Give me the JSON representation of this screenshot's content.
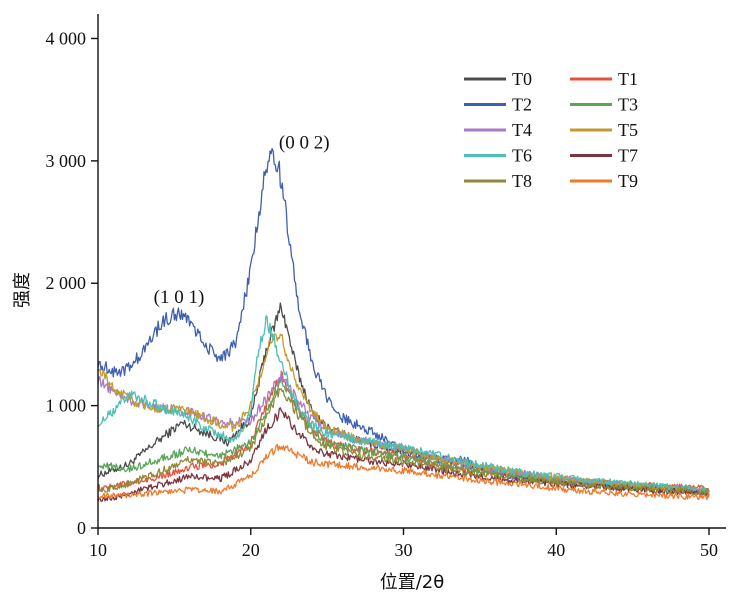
{
  "chart_data": {
    "type": "line",
    "title": "",
    "xlabel": "位置/2θ",
    "ylabel": "强度",
    "xlim": [
      10,
      50
    ],
    "ylim": [
      0,
      4200
    ],
    "x_ticks": [
      10,
      20,
      30,
      40,
      50
    ],
    "x_tick_labels": [
      "10",
      "20",
      "30",
      "40",
      "50"
    ],
    "y_ticks": [
      0,
      1000,
      2000,
      3000,
      4000
    ],
    "y_tick_labels": [
      "0",
      "1 000",
      "2 000",
      "3 000",
      "4 000"
    ],
    "grid": false,
    "legend_position": "top-right",
    "annotations": [
      {
        "text": "(1 0 1)",
        "x": 15.3,
        "y": 1840
      },
      {
        "text": "(0 0 2)",
        "x": 23.5,
        "y": 3100
      }
    ],
    "series": [
      {
        "name": "T0",
        "color": "#4d4d4d",
        "x": [
          10,
          12,
          14,
          15.5,
          17,
          18.5,
          20,
          21,
          22,
          23,
          24,
          25,
          27,
          30,
          34,
          38,
          42,
          46,
          50
        ],
        "y": [
          430,
          520,
          720,
          860,
          780,
          700,
          900,
          1450,
          1820,
          1300,
          950,
          820,
          720,
          620,
          520,
          420,
          360,
          320,
          290
        ]
      },
      {
        "name": "T1",
        "color": "#e8503a",
        "x": [
          10,
          12,
          14,
          16,
          18,
          20,
          21,
          22,
          23,
          24,
          25,
          27,
          30,
          34,
          38,
          42,
          46,
          50
        ],
        "y": [
          330,
          360,
          420,
          500,
          520,
          700,
          1000,
          1250,
          1000,
          800,
          700,
          640,
          580,
          480,
          420,
          380,
          350,
          320
        ]
      },
      {
        "name": "T2",
        "color": "#3f5fb0",
        "x": [
          10,
          11,
          12,
          13,
          14,
          15,
          16,
          17,
          18,
          19,
          20,
          20.5,
          21,
          21.5,
          22,
          22.5,
          23,
          24,
          25,
          26,
          28,
          30,
          32,
          34,
          36,
          38,
          40,
          42,
          45,
          48,
          50
        ],
        "y": [
          1350,
          1280,
          1300,
          1450,
          1650,
          1760,
          1700,
          1500,
          1380,
          1500,
          2100,
          2550,
          2950,
          3070,
          2850,
          2400,
          1900,
          1350,
          1050,
          900,
          780,
          640,
          560,
          560,
          460,
          400,
          380,
          350,
          330,
          310,
          290
        ]
      },
      {
        "name": "T3",
        "color": "#5aa55a",
        "x": [
          10,
          12,
          14,
          16,
          18,
          20,
          21,
          22,
          23,
          24,
          25,
          27,
          30,
          34,
          38,
          42,
          46,
          50
        ],
        "y": [
          520,
          480,
          560,
          640,
          580,
          700,
          950,
          1200,
          1000,
          800,
          700,
          640,
          580,
          480,
          420,
          370,
          340,
          300
        ]
      },
      {
        "name": "T4",
        "color": "#a979c9",
        "x": [
          10,
          12,
          14,
          16,
          18,
          20,
          21,
          22,
          23,
          24,
          25,
          27,
          30,
          34,
          38,
          42,
          46,
          50
        ],
        "y": [
          1200,
          1050,
          980,
          950,
          860,
          880,
          1050,
          1250,
          1050,
          900,
          800,
          720,
          650,
          520,
          440,
          380,
          340,
          300
        ]
      },
      {
        "name": "T5",
        "color": "#c49a2e",
        "x": [
          10,
          11,
          12,
          14,
          16,
          18,
          19,
          20,
          21,
          21.5,
          22,
          23,
          24,
          25,
          27,
          30,
          34,
          38,
          42,
          46,
          50
        ],
        "y": [
          1300,
          1150,
          1050,
          980,
          950,
          850,
          820,
          1000,
          1400,
          1600,
          1550,
          1200,
          950,
          820,
          720,
          640,
          520,
          440,
          380,
          340,
          300
        ]
      },
      {
        "name": "T6",
        "color": "#4dbfb4",
        "x": [
          10,
          11,
          12,
          14,
          16,
          17,
          18,
          19,
          20,
          20.5,
          21,
          21.5,
          22,
          23,
          24,
          25,
          27,
          30,
          34,
          38,
          42,
          46,
          50
        ],
        "y": [
          850,
          950,
          1100,
          1000,
          900,
          820,
          760,
          720,
          950,
          1450,
          1700,
          1550,
          1350,
          1000,
          850,
          780,
          720,
          660,
          540,
          450,
          390,
          350,
          310
        ]
      },
      {
        "name": "T7",
        "color": "#7d3340",
        "x": [
          10,
          12,
          14,
          16,
          18,
          20,
          21,
          22,
          23,
          24,
          25,
          27,
          30,
          34,
          38,
          42,
          46,
          50
        ],
        "y": [
          220,
          280,
          350,
          420,
          400,
          550,
          800,
          960,
          800,
          650,
          600,
          560,
          520,
          440,
          380,
          340,
          310,
          280
        ]
      },
      {
        "name": "T8",
        "color": "#8e8a3a",
        "x": [
          10,
          12,
          14,
          16,
          18,
          20,
          21,
          22,
          23,
          24,
          25,
          27,
          30,
          34,
          38,
          42,
          46,
          50
        ],
        "y": [
          300,
          360,
          460,
          560,
          520,
          650,
          900,
          1150,
          950,
          760,
          660,
          600,
          540,
          460,
          400,
          350,
          320,
          290
        ]
      },
      {
        "name": "T9",
        "color": "#f07a2a",
        "x": [
          10,
          12,
          14,
          16,
          18,
          20,
          21,
          22,
          23,
          24,
          25,
          27,
          30,
          34,
          38,
          42,
          46,
          50
        ],
        "y": [
          260,
          270,
          290,
          310,
          300,
          420,
          580,
          680,
          600,
          540,
          520,
          500,
          470,
          400,
          350,
          300,
          270,
          250
        ]
      }
    ]
  }
}
